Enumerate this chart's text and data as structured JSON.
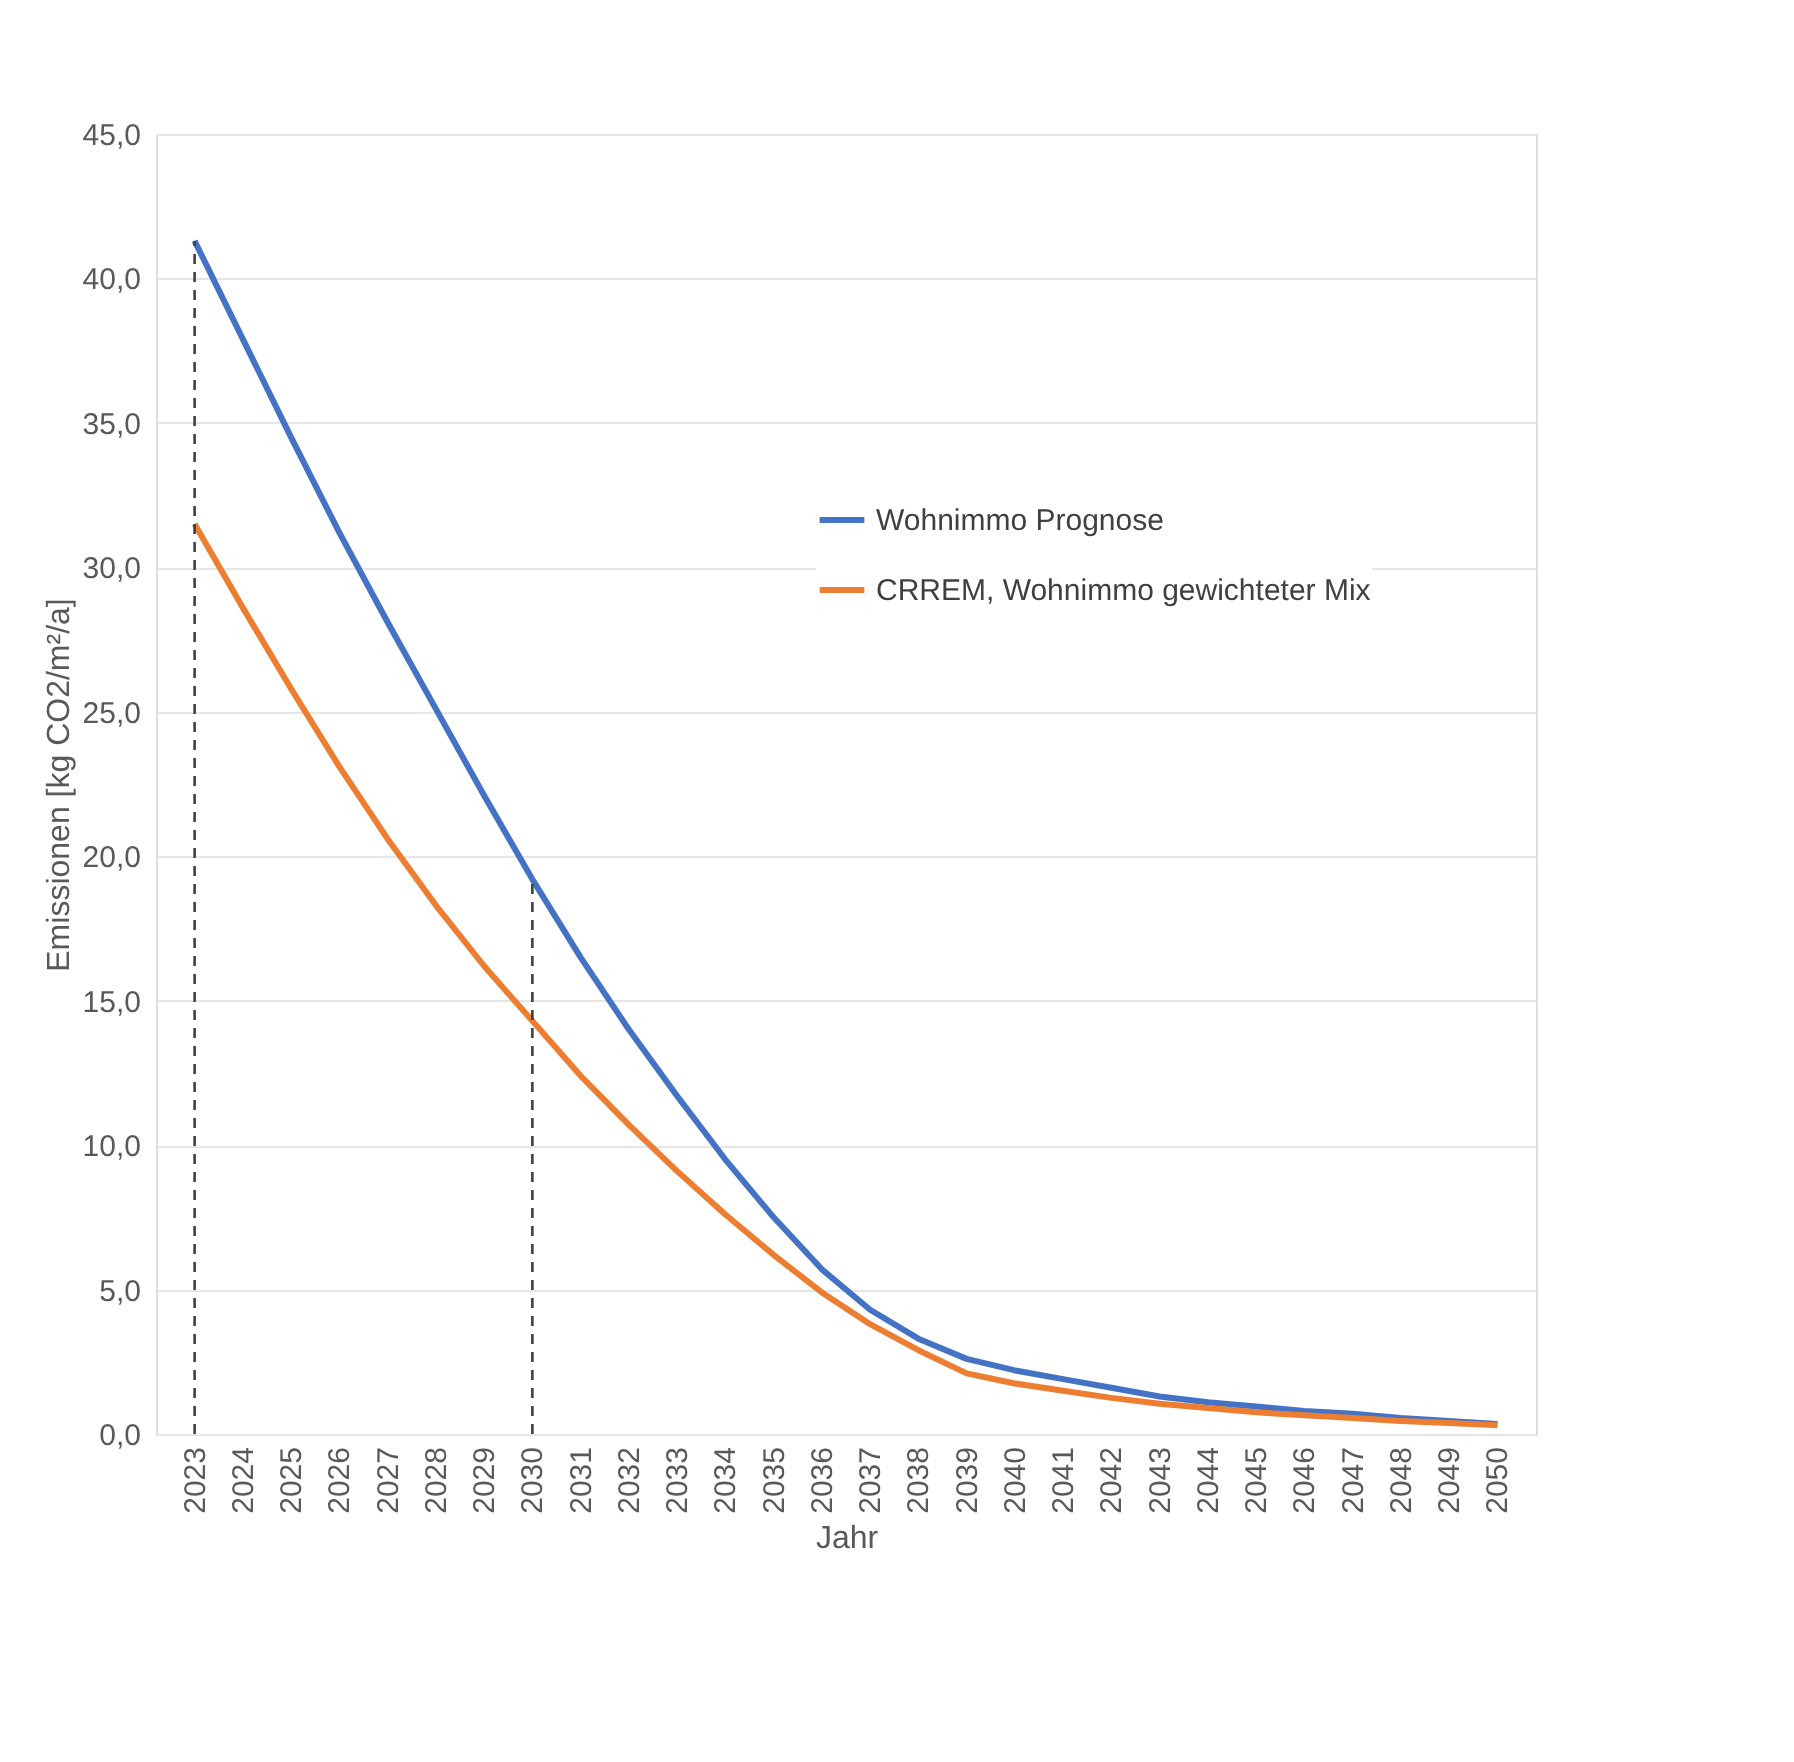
{
  "chart_data": {
    "type": "line",
    "xlabel": "Jahr",
    "ylabel": "Emissionen [kg CO2/m²/a]",
    "categories": [
      "2023",
      "2024",
      "2025",
      "2026",
      "2027",
      "2028",
      "2029",
      "2030",
      "2031",
      "2032",
      "2033",
      "2034",
      "2035",
      "2036",
      "2037",
      "2038",
      "2039",
      "2040",
      "2041",
      "2042",
      "2043",
      "2044",
      "2045",
      "2046",
      "2047",
      "2048",
      "2049",
      "2050"
    ],
    "series": [
      {
        "name": "Wohnimmo Prognose",
        "color": "#4472c4",
        "values": [
          41.3,
          37.9,
          34.5,
          31.2,
          28.1,
          25.1,
          22.1,
          19.2,
          16.5,
          14.0,
          11.7,
          9.5,
          7.5,
          5.7,
          4.3,
          3.3,
          2.6,
          2.2,
          1.9,
          1.6,
          1.3,
          1.1,
          0.95,
          0.8,
          0.7,
          0.55,
          0.45,
          0.35
        ]
      },
      {
        "name": "CRREM, Wohnimmo gewichteter Mix",
        "color": "#ed7d31",
        "values": [
          31.5,
          28.6,
          25.8,
          23.1,
          20.6,
          18.3,
          16.2,
          14.3,
          12.4,
          10.7,
          9.1,
          7.6,
          6.2,
          4.9,
          3.8,
          2.9,
          2.1,
          1.75,
          1.5,
          1.25,
          1.05,
          0.9,
          0.75,
          0.65,
          0.55,
          0.45,
          0.38,
          0.3
        ]
      }
    ],
    "ylim": [
      0,
      45
    ],
    "yticks": [
      {
        "value": 0,
        "label": "0,0"
      },
      {
        "value": 5,
        "label": "5,0"
      },
      {
        "value": 10,
        "label": "10,0"
      },
      {
        "value": 15,
        "label": "15,0"
      },
      {
        "value": 20,
        "label": "20,0"
      },
      {
        "value": 25,
        "label": "25,0"
      },
      {
        "value": 30,
        "label": "30,0"
      },
      {
        "value": 35,
        "label": "35,0"
      },
      {
        "value": 40,
        "label": "40,0"
      },
      {
        "value": 45,
        "label": "45,0"
      }
    ],
    "ref_lines": [
      {
        "axis": "x",
        "value": "2023",
        "color": "#404040",
        "line_style": "dashed"
      },
      {
        "axis": "x",
        "value": "2030",
        "color": "#404040",
        "line_style": "dashed"
      }
    ],
    "grid": "y",
    "legend": "top right",
    "marker": "none",
    "line_style": "solid"
  }
}
